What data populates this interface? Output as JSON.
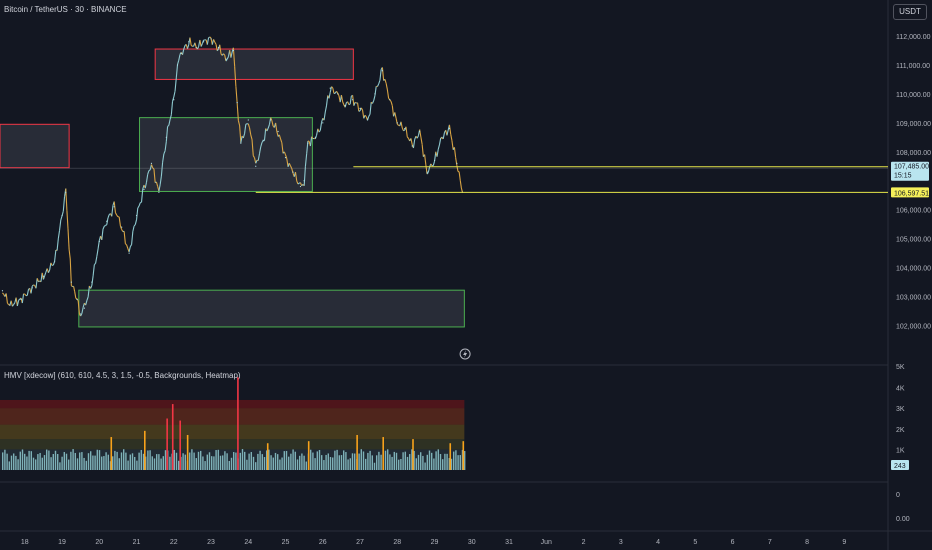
{
  "header": {
    "title": "Bitcoin / TetherUS · 30 · BINANCE",
    "currency_button": "USDT"
  },
  "indicator": {
    "title": "HMV [xdecow] (610, 610, 4.5, 3, 1.5, -0.5, Backgrounds, Heatmap)",
    "axis_labels": [
      "4K",
      "3K",
      "2K",
      "1K"
    ],
    "top_cut_label": "5K",
    "value_badge": "243",
    "extra_axis_labels": [
      "0",
      "0.00"
    ]
  },
  "price_axis": {
    "labels": [
      "112,000.00",
      "111,000.00",
      "110,000.00",
      "109,000.00",
      "108,000.00",
      "106,000.00",
      "105,000.00",
      "104,000.00",
      "103,000.00",
      "102,000.00"
    ],
    "current_price": "107,485.00",
    "countdown": "15:15",
    "level_badge": "106,597.51"
  },
  "time_axis": {
    "labels": [
      "18",
      "19",
      "20",
      "21",
      "22",
      "23",
      "24",
      "25",
      "26",
      "27",
      "28",
      "29",
      "30",
      "31",
      "Jun",
      "2",
      "3",
      "4",
      "5",
      "6",
      "7",
      "8",
      "9"
    ]
  },
  "colors": {
    "background": "#131722",
    "bull": "#26a69a",
    "bear": "#ef5350",
    "zone_red": "#f23645",
    "zone_green": "#4caf50",
    "level_line": "#e6e64a",
    "current_price_badge": "#b9e5ef"
  },
  "chart_data": {
    "type": "line",
    "title": "Bitcoin / TetherUS · 30 · BINANCE",
    "xlabel": "",
    "ylabel": "",
    "x_unit": "day (May 2025)",
    "x": [
      17.4,
      17.6,
      17.9,
      18.2,
      18.5,
      18.8,
      19.0,
      19.1,
      19.25,
      19.4,
      19.5,
      19.6,
      19.8,
      20.0,
      20.2,
      20.4,
      20.6,
      20.8,
      21.0,
      21.2,
      21.4,
      21.6,
      21.8,
      22.0,
      22.1,
      22.2,
      22.4,
      22.6,
      22.8,
      23.0,
      23.2,
      23.4,
      23.6,
      23.7,
      23.8,
      24.0,
      24.2,
      24.4,
      24.6,
      24.8,
      25.0,
      25.2,
      25.4,
      25.5,
      25.6,
      25.8,
      26.0,
      26.2,
      26.4,
      26.6,
      26.8,
      27.0,
      27.2,
      27.4,
      27.6,
      27.8,
      28.0,
      28.2,
      28.4,
      28.6,
      28.8,
      29.0,
      29.2,
      29.4,
      29.6,
      29.75
    ],
    "y": [
      103200,
      102700,
      102900,
      103300,
      103700,
      104200,
      105800,
      106600,
      103500,
      102900,
      102400,
      102600,
      103500,
      104900,
      105600,
      106100,
      105400,
      104500,
      105800,
      106700,
      107600,
      106600,
      108500,
      109800,
      111000,
      111400,
      111800,
      111600,
      111800,
      111900,
      111600,
      111200,
      111500,
      109700,
      108300,
      109100,
      107500,
      108400,
      109100,
      108700,
      107800,
      107300,
      106800,
      107000,
      108300,
      108500,
      109000,
      110200,
      110000,
      109600,
      109800,
      109500,
      109100,
      110000,
      110800,
      109800,
      109000,
      108800,
      108200,
      108700,
      107300,
      107700,
      108500,
      108800,
      107600,
      106600
    ],
    "ylim": [
      101500,
      112600
    ],
    "xlim": [
      17.15,
      41.6
    ],
    "price_labels_on_axis": [
      112000,
      111000,
      110000,
      109000,
      108000,
      106000,
      105000,
      104000,
      103000,
      102000
    ],
    "current_price": 107485.0,
    "level_lines": [
      107485.0,
      106597.51
    ],
    "zones": [
      {
        "color": "red",
        "x0": 17.15,
        "x1": 19.19,
        "y0": 107450,
        "y1": 108950
      },
      {
        "color": "red",
        "x0": 21.5,
        "x1": 26.82,
        "y0": 110500,
        "y1": 111550
      },
      {
        "color": "green",
        "x0": 21.08,
        "x1": 25.72,
        "y0": 106630,
        "y1": 109180
      },
      {
        "color": "green",
        "x0": 19.45,
        "x1": 29.8,
        "y0": 101950,
        "y1": 103220
      }
    ],
    "volume": {
      "ylim": [
        0,
        5000
      ],
      "axis_ticks": [
        4000,
        3000,
        2000,
        1000
      ],
      "last_value": 243,
      "spikes": [
        {
          "x": 20.3,
          "v": 1600
        },
        {
          "x": 21.2,
          "v": 1900
        },
        {
          "x": 21.8,
          "v": 2500
        },
        {
          "x": 21.95,
          "v": 3200
        },
        {
          "x": 22.15,
          "v": 2400
        },
        {
          "x": 22.35,
          "v": 1700
        },
        {
          "x": 23.7,
          "v": 4500
        },
        {
          "x": 24.5,
          "v": 1300
        },
        {
          "x": 25.6,
          "v": 1400
        },
        {
          "x": 26.9,
          "v": 1700
        },
        {
          "x": 27.6,
          "v": 1600
        },
        {
          "x": 28.4,
          "v": 1500
        },
        {
          "x": 29.4,
          "v": 1300
        },
        {
          "x": 29.75,
          "v": 1400
        }
      ]
    }
  }
}
